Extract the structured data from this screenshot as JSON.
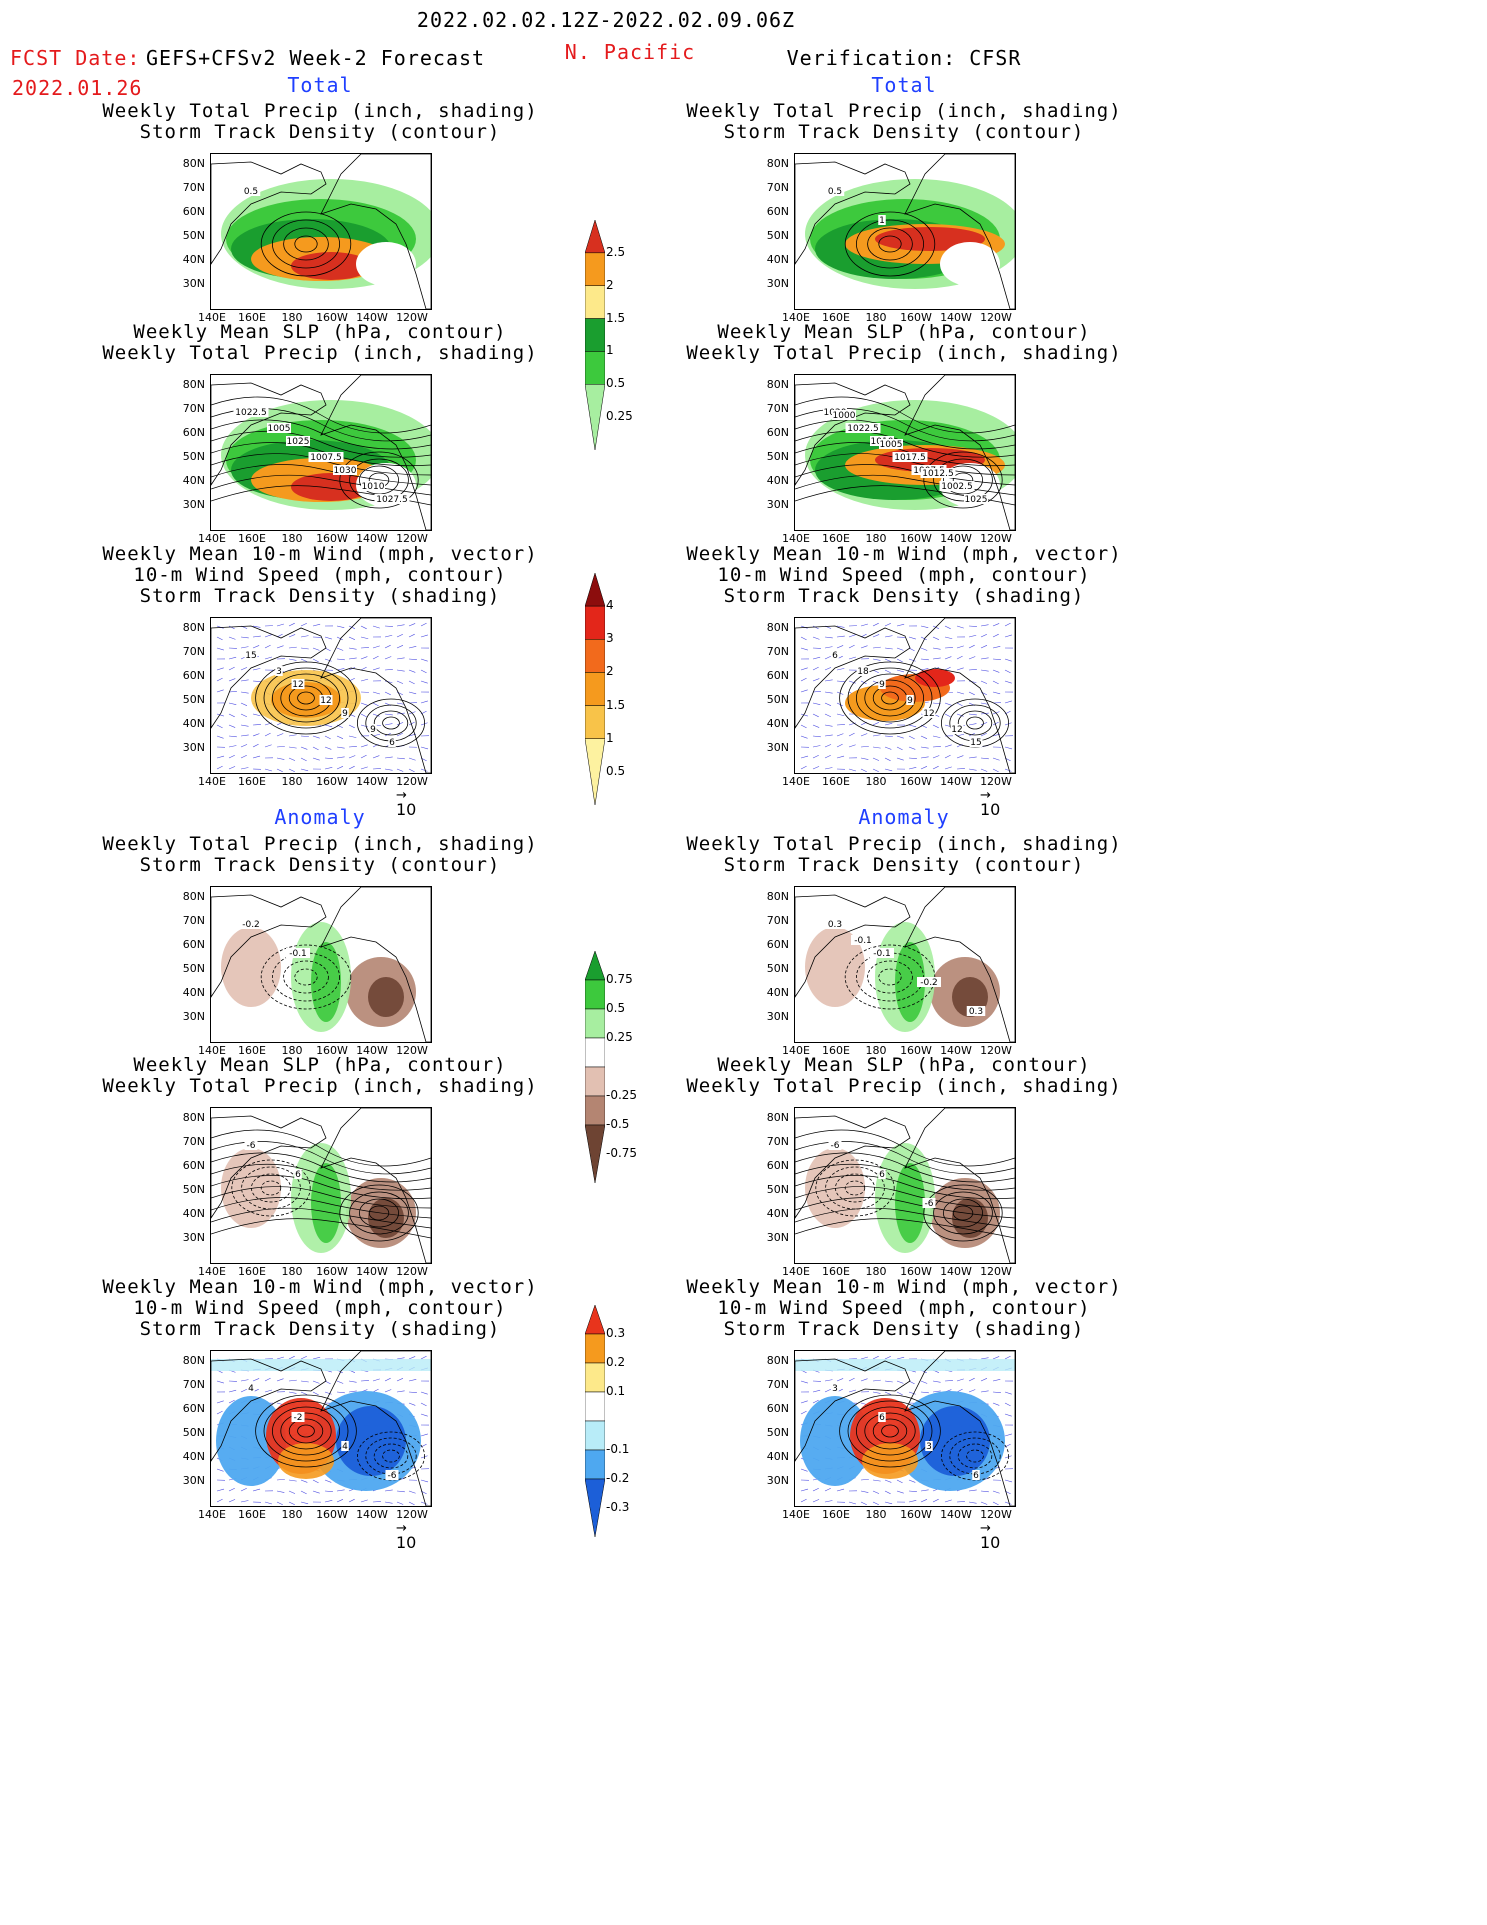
{
  "header": {
    "date_range": "2022.02.02.12Z-2022.02.09.06Z",
    "fcst_label": "FCST Date:",
    "fcst_model": "GEFS+CFSv2 Week-2 Forecast",
    "fcst_date": "2022.01.26",
    "region": "N. Pacific",
    "verification": "Verification: CFSR"
  },
  "sections": {
    "total": "Total",
    "anomaly": "Anomaly"
  },
  "panel_titles": {
    "precip_storm": [
      "Weekly Total Precip (inch, shading)",
      "Storm Track Density (contour)"
    ],
    "slp_precip": [
      "Weekly Mean SLP (hPa, contour)",
      "Weekly Total Precip (inch, shading)"
    ],
    "wind_storm": [
      "Weekly Mean 10-m Wind (mph, vector)",
      "10-m Wind Speed (mph, contour)",
      "Storm Track Density (shading)"
    ]
  },
  "axes": {
    "lat": [
      "80N",
      "70N",
      "60N",
      "50N",
      "40N",
      "30N"
    ],
    "lon": [
      "140E",
      "160E",
      "180",
      "160W",
      "140W",
      "120W"
    ]
  },
  "vector_ref": "10",
  "colorbars": {
    "precip_total": {
      "labels": [
        "2.5",
        "2",
        "1.5",
        "1",
        "0.5",
        "0.25"
      ],
      "colors": [
        "#d7301f",
        "#f59a1e",
        "#fde98a",
        "#1a9e2f",
        "#3dc93d",
        "#a7eea0"
      ]
    },
    "storm_total": {
      "labels": [
        "4",
        "3",
        "2",
        "1.5",
        "1",
        "0.5"
      ],
      "colors": [
        "#8c0d0d",
        "#e3261a",
        "#f26a1c",
        "#f59a1e",
        "#f8c349",
        "#fdf2a0"
      ]
    },
    "precip_anom": {
      "labels": [
        "0.75",
        "0.5",
        "0.25",
        "-0.25",
        "-0.5",
        "-0.75"
      ],
      "colors": [
        "#1a9e2f",
        "#3dc93d",
        "#a7eea0",
        "#ffffff",
        "#e2c0b2",
        "#b48572",
        "#6e4433"
      ]
    },
    "storm_anom": {
      "labels": [
        "0.3",
        "0.2",
        "0.1",
        "-0.1",
        "-0.2",
        "-0.3"
      ],
      "colors": [
        "#e8341c",
        "#f59a1e",
        "#fde98a",
        "#ffffff",
        "#b8ecf8",
        "#4ea8f0",
        "#1c5fd8"
      ]
    }
  },
  "contour_labels": {
    "f_total_precip": [
      "0.5"
    ],
    "v_total_precip": [
      "0.5",
      "1"
    ],
    "f_total_slp": [
      "1022.5",
      "1025",
      "1030",
      "1027.5",
      "1005",
      "1007.5",
      "1010"
    ],
    "v_total_slp": [
      "1020",
      "1010",
      "1007.5",
      "1025",
      "1022.5",
      "1017.5",
      "1002.5",
      "1000",
      "1005",
      "1012.5"
    ],
    "f_total_wind": [
      "15",
      "12",
      "9",
      "6",
      "3",
      "12",
      "9"
    ],
    "v_total_wind": [
      "6",
      "9",
      "12",
      "15",
      "18",
      "9",
      "12"
    ],
    "f_anom_precip": [
      "-0.2",
      "-0.1"
    ],
    "v_anom_precip": [
      "0.3",
      "-0.1",
      "-0.2",
      "0.3",
      "-0.1"
    ],
    "f_anom_slp": [
      "-6",
      "6"
    ],
    "v_anom_slp": [
      "-6",
      "6",
      "-6"
    ],
    "f_anom_wind": [
      "4",
      "-2",
      "4",
      "-6"
    ],
    "v_anom_wind": [
      "3",
      "6",
      "3",
      "6"
    ]
  }
}
